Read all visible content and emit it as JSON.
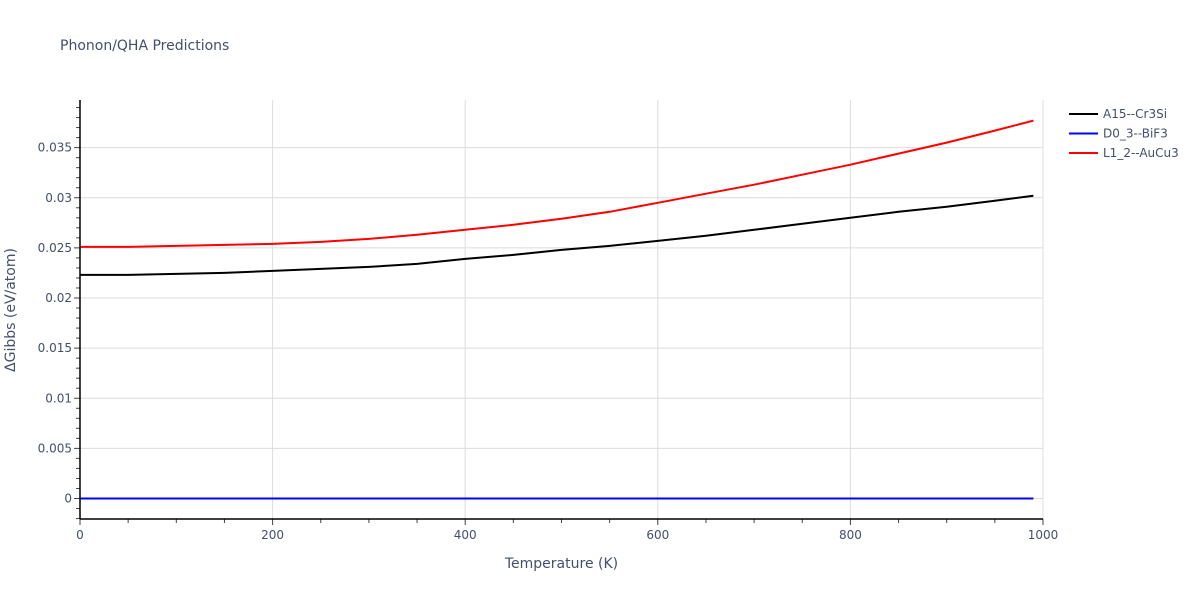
{
  "chart_data": {
    "type": "line",
    "title": "Phonon/QHA Predictions",
    "xlabel": "Temperature (K)",
    "ylabel": "ΔGibbs (eV/atom)",
    "xlim": [
      0,
      1000
    ],
    "ylim": [
      -0.002,
      0.0397
    ],
    "xticks": [
      0,
      200,
      400,
      600,
      800,
      1000
    ],
    "xtick_labels": [
      "0",
      "200",
      "400",
      "600",
      "800",
      "1000"
    ],
    "yticks": [
      0,
      0.005,
      0.01,
      0.015,
      0.02,
      0.025,
      0.03,
      0.035
    ],
    "ytick_labels": [
      "0",
      "0.005",
      "0.01",
      "0.015",
      "0.02",
      "0.025",
      "0.03",
      "0.035"
    ],
    "grid": true,
    "legend_position": "right-top",
    "x": [
      0,
      50,
      100,
      150,
      200,
      250,
      300,
      350,
      400,
      450,
      500,
      550,
      600,
      650,
      700,
      750,
      800,
      850,
      900,
      950,
      990
    ],
    "series": [
      {
        "name": "A15--Cr3Si",
        "color": "#000000",
        "values": [
          0.0223,
          0.0223,
          0.0224,
          0.0225,
          0.0227,
          0.0229,
          0.0231,
          0.0234,
          0.0239,
          0.0243,
          0.0248,
          0.0252,
          0.0257,
          0.0262,
          0.0268,
          0.0274,
          0.028,
          0.0286,
          0.0291,
          0.0297,
          0.0302
        ]
      },
      {
        "name": "D0_3--BiF3",
        "color": "#0000ff",
        "values": [
          0,
          0,
          0,
          0,
          0,
          0,
          0,
          0,
          0,
          0,
          0,
          0,
          0,
          0,
          0,
          0,
          0,
          0,
          0,
          0,
          0
        ]
      },
      {
        "name": "L1_2--AuCu3",
        "color": "#ff0000",
        "values": [
          0.0251,
          0.0251,
          0.0252,
          0.0253,
          0.0254,
          0.0256,
          0.0259,
          0.0263,
          0.0268,
          0.0273,
          0.0279,
          0.0286,
          0.0295,
          0.0304,
          0.0313,
          0.0323,
          0.0333,
          0.0344,
          0.0355,
          0.0367,
          0.0377
        ]
      }
    ]
  }
}
